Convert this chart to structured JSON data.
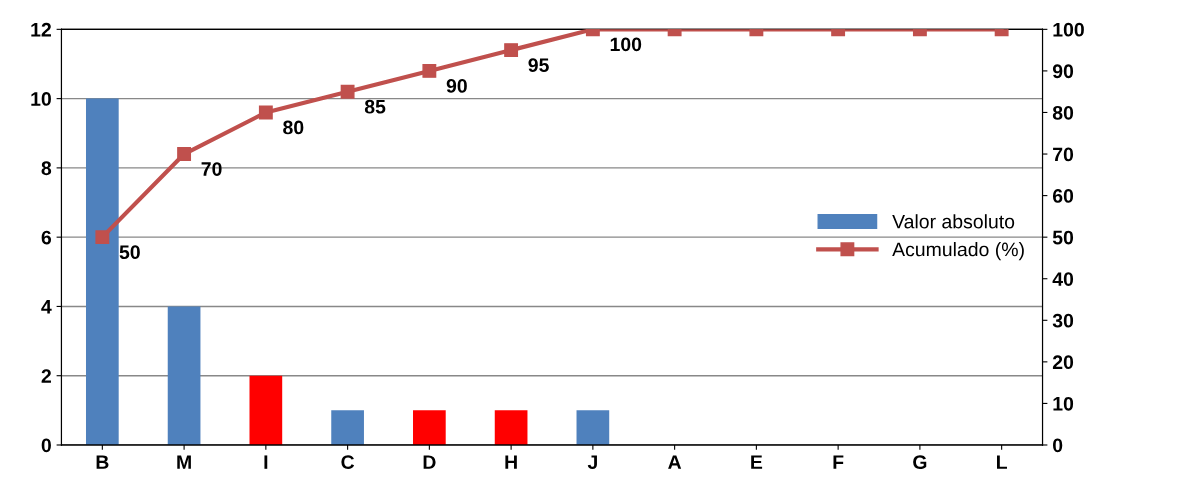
{
  "chart_data": {
    "type": "bar",
    "categories": [
      "B",
      "M",
      "I",
      "C",
      "D",
      "H",
      "J",
      "A",
      "E",
      "F",
      "G",
      "L"
    ],
    "series": [
      {
        "name": "Valor absoluto",
        "color": "#4f81bd",
        "colors": [
          "#4f81bd",
          "#4f81bd",
          "#ff0000",
          "#4f81bd",
          "#ff0000",
          "#ff0000",
          "#4f81bd",
          "#4f81bd",
          "#4f81bd",
          "#4f81bd",
          "#4f81bd",
          "#4f81bd"
        ],
        "values": [
          10,
          4,
          2,
          1,
          1,
          1,
          1,
          0,
          0,
          0,
          0,
          0
        ]
      },
      {
        "name": "Acumulado (%)",
        "type": "line",
        "axis": "y2",
        "color": "#c0504d",
        "marker": "square",
        "line_style": "solid",
        "values": [
          50,
          70,
          80,
          85,
          90,
          95,
          100,
          100,
          100,
          100,
          100,
          100
        ],
        "value_labels": [
          "50",
          "70",
          "80",
          "85",
          "90",
          "95",
          "100",
          null,
          null,
          null,
          null,
          null
        ]
      }
    ],
    "ylim": [
      0,
      12
    ],
    "yticks": [
      0,
      2,
      4,
      6,
      8,
      10,
      12
    ],
    "y2lim": [
      0,
      100
    ],
    "y2ticks": [
      0,
      10,
      20,
      30,
      40,
      50,
      60,
      70,
      80,
      90,
      100
    ],
    "grid": "y",
    "legend": "right"
  }
}
